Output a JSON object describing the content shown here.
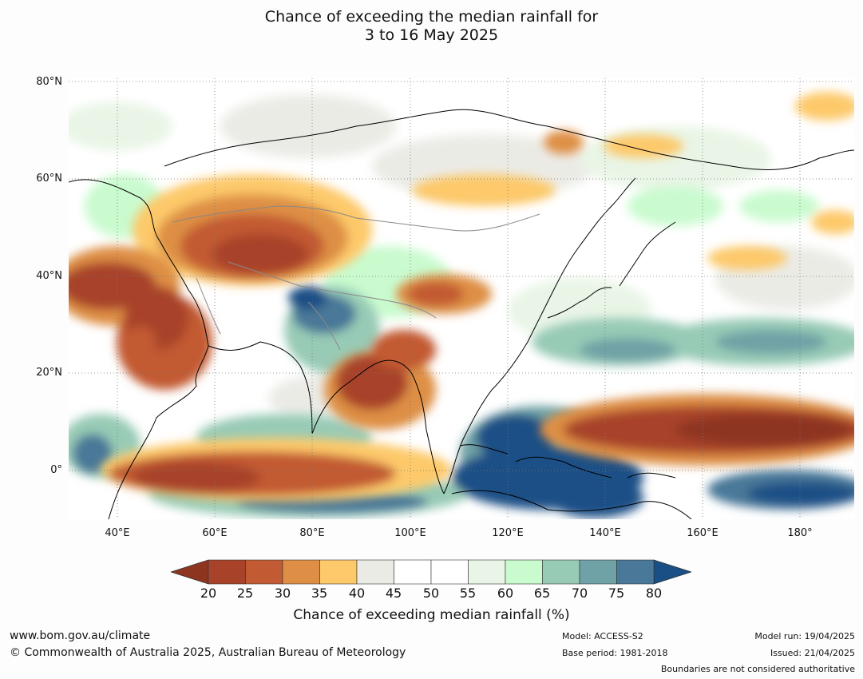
{
  "title": {
    "line1": "Chance of exceeding the median rainfall for",
    "line2": "3 to 16 May 2025"
  },
  "map": {
    "lat_labels": [
      "80°N",
      "60°N",
      "40°N",
      "20°N",
      "0°"
    ],
    "lon_labels": [
      "40°E",
      "60°E",
      "80°E",
      "100°E",
      "120°E",
      "140°E",
      "160°E",
      "180°"
    ],
    "extent": {
      "lon_min": 30,
      "lon_max": 191,
      "lat_min": -10,
      "lat_max": 80
    }
  },
  "colorbar": {
    "ticks": [
      "20",
      "25",
      "30",
      "35",
      "40",
      "45",
      "50",
      "55",
      "60",
      "65",
      "70",
      "75",
      "80"
    ],
    "colors": [
      "#a8432a",
      "#c25a33",
      "#de8f45",
      "#fdc96a",
      "#ebebe6",
      "#ffffff",
      "#ffffff",
      "#e9f5e6",
      "#c9fbcf",
      "#98cbb6",
      "#6fa2a6",
      "#4a7898"
    ],
    "under_color": "#8e3520",
    "over_color": "#1a4f86",
    "label": "Chance of exceeding median rainfall (%)"
  },
  "footer": {
    "website": "www.bom.gov.au/climate",
    "copyright": "© Commonwealth of Australia 2025, Australian Bureau of Meteorology",
    "model": "Model: ACCESS-S2",
    "base_period": "Base period: 1981-2018",
    "model_run": "Model run: 19/04/2025",
    "issued": "Issued: 21/04/2025",
    "disclaimer": "Boundaries are not considered authoritative"
  }
}
